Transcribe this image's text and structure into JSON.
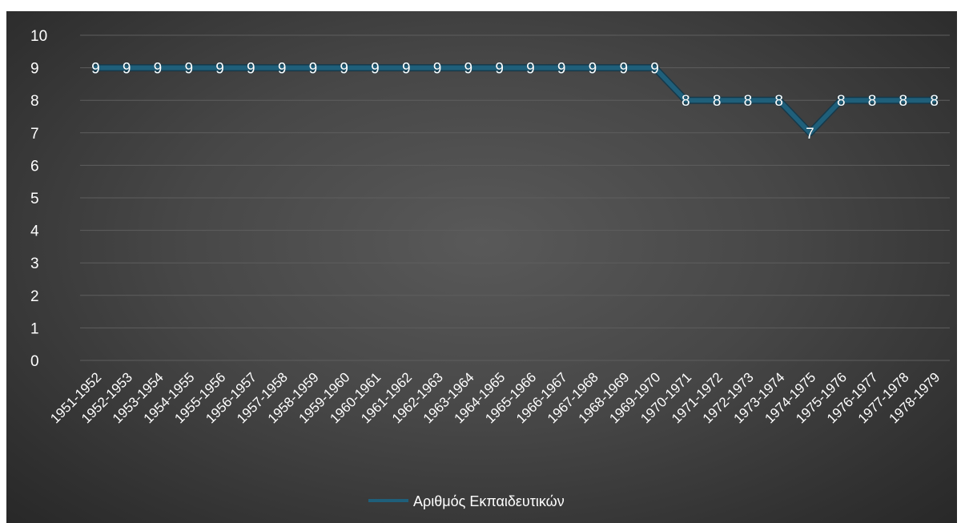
{
  "chart_data": {
    "type": "line",
    "categories": [
      "1951-1952",
      "1952-1953",
      "1953-1954",
      "1954-1955",
      "1955-1956",
      "1956-1957",
      "1957-1958",
      "1958-1959",
      "1959-1960",
      "1960-1961",
      "1961-1962",
      "1962-1963",
      "1963-1964",
      "1964-1965",
      "1965-1966",
      "1966-1967",
      "1967-1968",
      "1968-1969",
      "1969-1970",
      "1970-1971",
      "1971-1972",
      "1972-1973",
      "1973-1974",
      "1974-1975",
      "1975-1976",
      "1976-1977",
      "1977-1978",
      "1978-1979"
    ],
    "series": [
      {
        "name": "Αριθμός Εκπαιδευτικών",
        "values": [
          9,
          9,
          9,
          9,
          9,
          9,
          9,
          9,
          9,
          9,
          9,
          9,
          9,
          9,
          9,
          9,
          9,
          9,
          9,
          8,
          8,
          8,
          8,
          7,
          8,
          8,
          8,
          8
        ],
        "color": "#1f5f7a"
      }
    ],
    "title": "",
    "xlabel": "",
    "ylabel": "",
    "ylim": [
      0,
      10
    ],
    "yticks": [
      0,
      1,
      2,
      3,
      4,
      5,
      6,
      7,
      8,
      9,
      10
    ],
    "grid": true,
    "legend": "bottom",
    "data_labels": true,
    "background": "#474747"
  }
}
